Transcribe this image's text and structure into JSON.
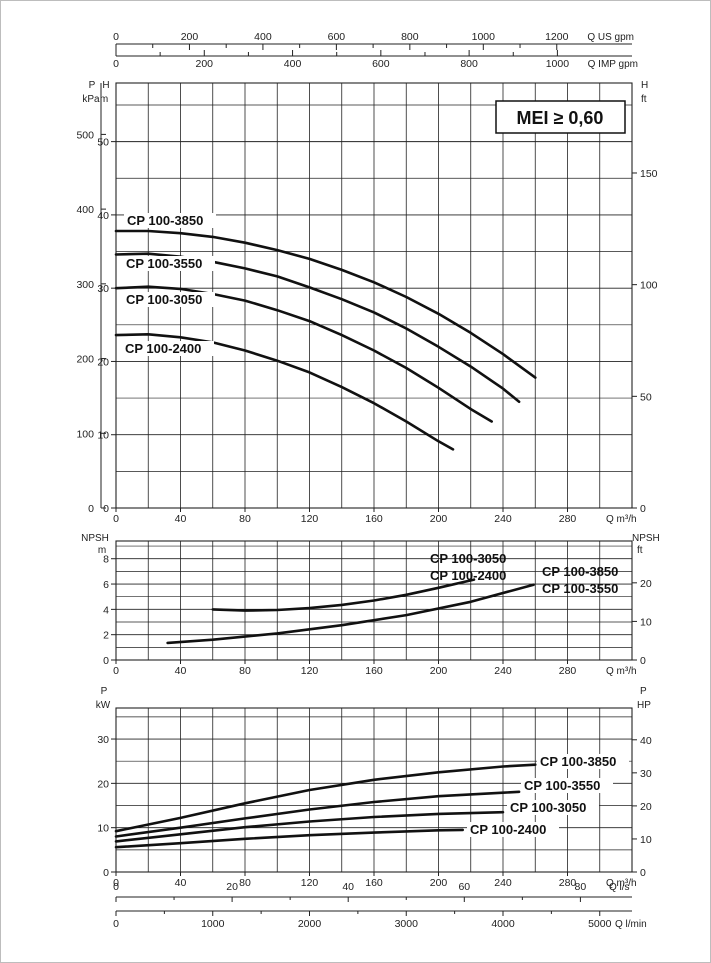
{
  "badge": "MEI ≥ 0,60",
  "chart_data": [
    {
      "type": "line",
      "name_ref": "head",
      "xlabel": "Q m³/h",
      "xlim": [
        0,
        320
      ],
      "x_ticks": [
        "0",
        "40",
        "80",
        "120",
        "160",
        "200",
        "240",
        "280"
      ],
      "ylabel_left_outer": "P kPa",
      "ylabel_left": "H m",
      "ylabel_right": "H ft",
      "ylim": [
        0,
        58
      ],
      "y_ticks": [
        "0",
        "10",
        "20",
        "30",
        "40",
        "50"
      ],
      "kpa_ticks": [
        "0",
        "100",
        "200",
        "300",
        "400",
        "500"
      ],
      "ft_ticks": [
        "0",
        "50",
        "100",
        "150"
      ],
      "grid": true,
      "series": [
        {
          "name": "CP 100-3850",
          "x": [
            0,
            20,
            40,
            60,
            80,
            100,
            120,
            140,
            160,
            180,
            200,
            220,
            240,
            260
          ],
          "y": [
            37.8,
            37.8,
            37.5,
            37,
            36.2,
            35.2,
            34,
            32.5,
            30.8,
            28.8,
            26.5,
            23.9,
            21,
            17.8
          ]
        },
        {
          "name": "CP 100-3550",
          "x": [
            0,
            20,
            40,
            60,
            80,
            100,
            120,
            140,
            160,
            180,
            200,
            220,
            240,
            250
          ],
          "y": [
            34.6,
            34.7,
            34.3,
            33.6,
            32.7,
            31.6,
            30.1,
            28.5,
            26.7,
            24.5,
            22,
            19.3,
            16.3,
            14.5
          ]
        },
        {
          "name": "CP 100-3050",
          "x": [
            0,
            20,
            40,
            60,
            80,
            100,
            120,
            140,
            160,
            180,
            200,
            220,
            233
          ],
          "y": [
            30,
            30.2,
            29.9,
            29.2,
            28.3,
            27,
            25.5,
            23.6,
            21.5,
            19.1,
            16.4,
            13.5,
            11.8
          ]
        },
        {
          "name": "CP 100-2400",
          "x": [
            0,
            20,
            40,
            60,
            80,
            100,
            120,
            140,
            160,
            180,
            200,
            209
          ],
          "y": [
            23.6,
            23.7,
            23.3,
            22.6,
            21.5,
            20.1,
            18.5,
            16.5,
            14.3,
            11.8,
            9.1,
            8
          ]
        }
      ]
    },
    {
      "type": "line",
      "name_ref": "npsh",
      "xlabel": "Q m³/h",
      "xlim": [
        0,
        320
      ],
      "x_ticks": [
        "0",
        "40",
        "80",
        "120",
        "160",
        "200",
        "240",
        "280"
      ],
      "ylabel_left": "NPSH m",
      "ylabel_right": "NPSH ft",
      "ylim": [
        0,
        9.4
      ],
      "y_ticks": [
        "0",
        "2",
        "4",
        "6",
        "8"
      ],
      "ft_ticks": [
        "0",
        "10",
        "20"
      ],
      "grid": true,
      "series": [
        {
          "name": "CP 100-3050 / CP 100-2400",
          "labels": [
            "CP 100-3050",
            "CP 100-2400"
          ],
          "x": [
            60,
            80,
            100,
            120,
            140,
            160,
            180,
            200,
            222
          ],
          "y": [
            4.0,
            3.9,
            3.95,
            4.1,
            4.35,
            4.7,
            5.15,
            5.7,
            6.35
          ]
        },
        {
          "name": "CP 100-3850 / CP 100-3550",
          "labels": [
            "CP 100-3850",
            "CP 100-3550"
          ],
          "x": [
            32,
            60,
            100,
            140,
            180,
            220,
            259
          ],
          "y": [
            1.35,
            1.6,
            2.1,
            2.75,
            3.55,
            4.6,
            5.95
          ]
        }
      ]
    },
    {
      "type": "line",
      "name_ref": "power",
      "xlabel": "Q m³/h",
      "xlim": [
        0,
        320
      ],
      "x_ticks": [
        "0",
        "40",
        "80",
        "120",
        "160",
        "200",
        "240",
        "280"
      ],
      "ylabel_left": "P kW",
      "ylabel_right": "P HP",
      "ylim": [
        0,
        37
      ],
      "y_ticks": [
        "0",
        "10",
        "20",
        "30"
      ],
      "hp_ticks": [
        "0",
        "10",
        "20",
        "30",
        "40"
      ],
      "ls_label": "Q l/s",
      "ls_ticks": [
        "0",
        "20",
        "40",
        "60",
        "80"
      ],
      "lmin_label": "Q l/min",
      "lmin_ticks": [
        "0",
        "1000",
        "2000",
        "3000",
        "4000",
        "5000"
      ],
      "grid": true,
      "series": [
        {
          "name": "CP 100-3850",
          "x": [
            0,
            40,
            80,
            120,
            160,
            200,
            240,
            260
          ],
          "y": [
            9.2,
            12.2,
            15.5,
            18.5,
            20.8,
            22.5,
            23.8,
            24.2
          ]
        },
        {
          "name": "CP 100-3550",
          "x": [
            0,
            40,
            80,
            120,
            160,
            200,
            240,
            250
          ],
          "y": [
            8,
            10,
            12.1,
            14.1,
            15.8,
            17.1,
            17.9,
            18.1
          ]
        },
        {
          "name": "CP 100-3050",
          "x": [
            0,
            40,
            80,
            120,
            160,
            200,
            240
          ],
          "y": [
            6.9,
            8.5,
            10.1,
            11.4,
            12.4,
            13.1,
            13.5
          ]
        },
        {
          "name": "CP 100-2400",
          "x": [
            0,
            40,
            80,
            120,
            160,
            200,
            215
          ],
          "y": [
            5.6,
            6.5,
            7.5,
            8.3,
            8.9,
            9.4,
            9.5
          ]
        }
      ]
    }
  ],
  "top_axes": {
    "us_label": "Q US gpm",
    "us_ticks": [
      "0",
      "200",
      "400",
      "600",
      "800",
      "1000",
      "1200"
    ],
    "imp_label": "Q IMP gpm",
    "imp_ticks": [
      "0",
      "200",
      "400",
      "600",
      "800",
      "1000"
    ]
  }
}
